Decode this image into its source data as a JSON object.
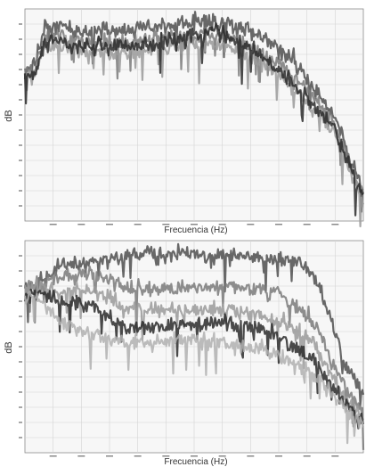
{
  "chart_data": [
    {
      "type": "line",
      "title": "",
      "xlabel": "Frecuencia (Hz)",
      "ylabel": "dB",
      "grid": true,
      "legend": "none",
      "series_colors": [
        "#4f4f4f",
        "#7a7a7a",
        "#9a9a9a",
        "#2a2a2a",
        "#b0b0b0"
      ],
      "series": [
        {
          "x": [
            0,
            0.03,
            0.06,
            0.15,
            0.3,
            0.45,
            0.55,
            0.62,
            0.7,
            0.8,
            0.87,
            0.92,
            0.96,
            1.0
          ],
          "y": [
            0.72,
            0.74,
            0.93,
            0.9,
            0.9,
            0.93,
            0.94,
            0.92,
            0.87,
            0.75,
            0.6,
            0.48,
            0.3,
            0.15
          ]
        },
        {
          "x": [
            0,
            0.03,
            0.06,
            0.15,
            0.3,
            0.45,
            0.55,
            0.62,
            0.7,
            0.8,
            0.87,
            0.92,
            0.96,
            1.0
          ],
          "y": [
            0.7,
            0.72,
            0.88,
            0.85,
            0.84,
            0.87,
            0.88,
            0.86,
            0.8,
            0.68,
            0.55,
            0.44,
            0.27,
            0.12
          ]
        },
        {
          "x": [
            0,
            0.03,
            0.06,
            0.15,
            0.3,
            0.45,
            0.55,
            0.62,
            0.7,
            0.8,
            0.87,
            0.92,
            0.96,
            1.0
          ],
          "y": [
            0.68,
            0.7,
            0.84,
            0.8,
            0.79,
            0.82,
            0.84,
            0.81,
            0.75,
            0.62,
            0.5,
            0.4,
            0.24,
            0.1
          ]
        },
        {
          "x": [
            0,
            0.03,
            0.06,
            0.15,
            0.3,
            0.45,
            0.55,
            0.62,
            0.7,
            0.8,
            0.87,
            0.92,
            0.96,
            1.0
          ],
          "y": [
            0.67,
            0.69,
            0.86,
            0.83,
            0.82,
            0.86,
            0.9,
            0.86,
            0.78,
            0.64,
            0.52,
            0.42,
            0.26,
            0.12
          ]
        }
      ]
    },
    {
      "type": "line",
      "title": "",
      "xlabel": "Frecuencia (Hz)",
      "ylabel": "dB",
      "grid": true,
      "legend": "none",
      "series_colors": [
        "#4f4f4f",
        "#7a7a7a",
        "#9a9a9a",
        "#2a2a2a",
        "#b0b0b0"
      ],
      "series": [
        {
          "x": [
            0,
            0.04,
            0.1,
            0.2,
            0.3,
            0.45,
            0.6,
            0.72,
            0.8,
            0.86,
            0.9,
            0.95,
            1.0
          ],
          "y": [
            0.78,
            0.8,
            0.88,
            0.9,
            0.93,
            0.94,
            0.93,
            0.92,
            0.9,
            0.82,
            0.65,
            0.4,
            0.28
          ]
        },
        {
          "x": [
            0,
            0.04,
            0.1,
            0.2,
            0.3,
            0.45,
            0.6,
            0.72,
            0.8,
            0.86,
            0.9,
            0.95,
            1.0
          ],
          "y": [
            0.78,
            0.8,
            0.83,
            0.85,
            0.78,
            0.77,
            0.79,
            0.76,
            0.7,
            0.6,
            0.45,
            0.3,
            0.2
          ]
        },
        {
          "x": [
            0,
            0.04,
            0.1,
            0.2,
            0.3,
            0.45,
            0.6,
            0.72,
            0.8,
            0.86,
            0.9,
            0.95,
            1.0
          ],
          "y": [
            0.76,
            0.78,
            0.75,
            0.77,
            0.68,
            0.67,
            0.68,
            0.64,
            0.58,
            0.5,
            0.38,
            0.26,
            0.17
          ]
        },
        {
          "x": [
            0,
            0.04,
            0.1,
            0.2,
            0.3,
            0.45,
            0.6,
            0.72,
            0.8,
            0.86,
            0.9,
            0.95,
            1.0
          ],
          "y": [
            0.74,
            0.76,
            0.72,
            0.69,
            0.58,
            0.6,
            0.62,
            0.57,
            0.5,
            0.43,
            0.33,
            0.23,
            0.15
          ]
        },
        {
          "x": [
            0,
            0.04,
            0.1,
            0.2,
            0.3,
            0.45,
            0.6,
            0.72,
            0.8,
            0.86,
            0.9,
            0.95,
            1.0
          ],
          "y": [
            0.72,
            0.73,
            0.62,
            0.56,
            0.52,
            0.53,
            0.52,
            0.48,
            0.42,
            0.36,
            0.28,
            0.2,
            0.14
          ]
        }
      ]
    }
  ]
}
